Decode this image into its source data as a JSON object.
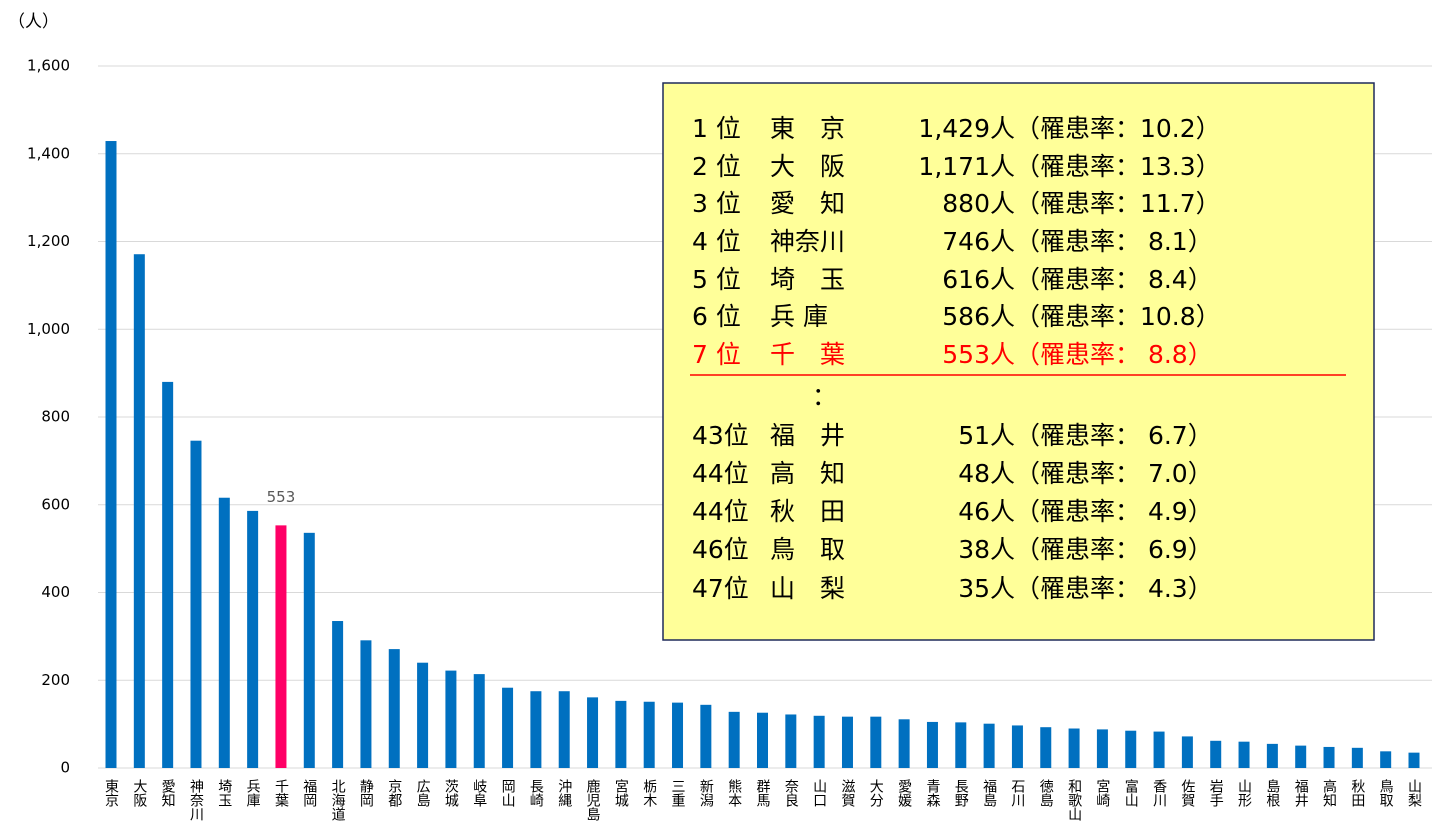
{
  "chart_data": {
    "type": "bar",
    "y_axis_label": "（人）",
    "categories": [
      "東京",
      "大阪",
      "愛知",
      "神奈川",
      "埼玉",
      "兵庫",
      "千葉",
      "福岡",
      "北海道",
      "静岡",
      "京都",
      "広島",
      "茨城",
      "岐阜",
      "岡山",
      "長崎",
      "沖縄",
      "鹿児島",
      "宮城",
      "栃木",
      "三重",
      "新潟",
      "熊本",
      "群馬",
      "奈良",
      "山口",
      "滋賀",
      "大分",
      "愛媛",
      "青森",
      "長野",
      "福島",
      "石川",
      "徳島",
      "和歌山",
      "宮崎",
      "富山",
      "香川",
      "佐賀",
      "岩手",
      "山形",
      "島根",
      "福井",
      "高知",
      "秋田",
      "鳥取",
      "山梨"
    ],
    "values": [
      1429,
      1171,
      880,
      746,
      616,
      586,
      553,
      536,
      335,
      291,
      271,
      240,
      222,
      214,
      183,
      175,
      175,
      161,
      153,
      151,
      149,
      144,
      128,
      126,
      122,
      119,
      117,
      117,
      111,
      105,
      104,
      101,
      97,
      93,
      90,
      88,
      85,
      83,
      72,
      62,
      60,
      55,
      51,
      48,
      46,
      38,
      35
    ],
    "colors": [
      "#0070c0",
      "#0070c0",
      "#0070c0",
      "#0070c0",
      "#0070c0",
      "#0070c0",
      "#ff0066",
      "#0070c0",
      "#0070c0",
      "#0070c0",
      "#0070c0",
      "#0070c0",
      "#0070c0",
      "#0070c0",
      "#0070c0",
      "#0070c0",
      "#0070c0",
      "#0070c0",
      "#0070c0",
      "#0070c0",
      "#0070c0",
      "#0070c0",
      "#0070c0",
      "#0070c0",
      "#0070c0",
      "#0070c0",
      "#0070c0",
      "#0070c0",
      "#0070c0",
      "#0070c0",
      "#0070c0",
      "#0070c0",
      "#0070c0",
      "#0070c0",
      "#0070c0",
      "#0070c0",
      "#0070c0",
      "#0070c0",
      "#0070c0",
      "#0070c0",
      "#0070c0",
      "#0070c0",
      "#0070c0",
      "#0070c0",
      "#0070c0",
      "#0070c0",
      "#0070c0"
    ],
    "value_labels": [
      null,
      null,
      null,
      null,
      null,
      null,
      "553",
      null,
      null,
      null,
      null,
      null,
      null,
      null,
      null,
      null,
      null,
      null,
      null,
      null,
      null,
      null,
      null,
      null,
      null,
      null,
      null,
      null,
      null,
      null,
      null,
      null,
      null,
      null,
      null,
      null,
      null,
      null,
      null,
      null,
      null,
      null,
      null,
      null,
      null,
      null,
      null
    ],
    "ylim": [
      0,
      1600
    ],
    "yticks": [
      0,
      200,
      400,
      600,
      800,
      {
        "value": 1000,
        "label": "1,000"
      },
      {
        "value": 1200,
        "label": "1,200"
      },
      {
        "value": 1400,
        "label": "1,400"
      },
      {
        "value": 1600,
        "label": "1,600"
      }
    ],
    "grid": true,
    "annotation_box": {
      "rows": [
        {
          "rank": "1 位",
          "name": "東　京",
          "count": "1,429人",
          "rate": "（罹患率：10.2）",
          "color": "#000000"
        },
        {
          "rank": "2 位",
          "name": "大　阪",
          "count": "1,171人",
          "rate": "（罹患率：13.3）",
          "color": "#000000"
        },
        {
          "rank": "3 位",
          "name": "愛　知",
          "count": "880人",
          "rate": "（罹患率：11.7）",
          "color": "#000000"
        },
        {
          "rank": "4 位",
          "name": "神奈川",
          "count": "746人",
          "rate": "（罹患率： 8.1）",
          "color": "#000000"
        },
        {
          "rank": "5 位",
          "name": "埼　玉",
          "count": "616人",
          "rate": "（罹患率： 8.4）",
          "color": "#000000"
        },
        {
          "rank": "6 位",
          "name": "兵 庫",
          "count": "586人",
          "rate": "（罹患率：10.8）",
          "color": "#000000"
        },
        {
          "rank": "7 位",
          "name": "千　葉",
          "count": "553人",
          "rate": "（罹患率： 8.8）",
          "color": "#ff0000"
        },
        {
          "rank": "",
          "name": "：",
          "count": "",
          "rate": "",
          "color": "#000000"
        },
        {
          "rank": "43位",
          "name": "福　井",
          "count": "51人",
          "rate": "（罹患率： 6.7）",
          "color": "#000000"
        },
        {
          "rank": "44位",
          "name": "高　知",
          "count": "48人",
          "rate": "（罹患率： 7.0）",
          "color": "#000000"
        },
        {
          "rank": "44位",
          "name": "秋　田",
          "count": "46人",
          "rate": "（罹患率： 4.9）",
          "color": "#000000"
        },
        {
          "rank": "46位",
          "name": "鳥　取",
          "count": "38人",
          "rate": "（罹患率： 6.9）",
          "color": "#000000"
        },
        {
          "rank": "47位",
          "name": "山　梨",
          "count": "35人",
          "rate": "（罹患率： 4.3）",
          "color": "#000000"
        }
      ]
    }
  }
}
